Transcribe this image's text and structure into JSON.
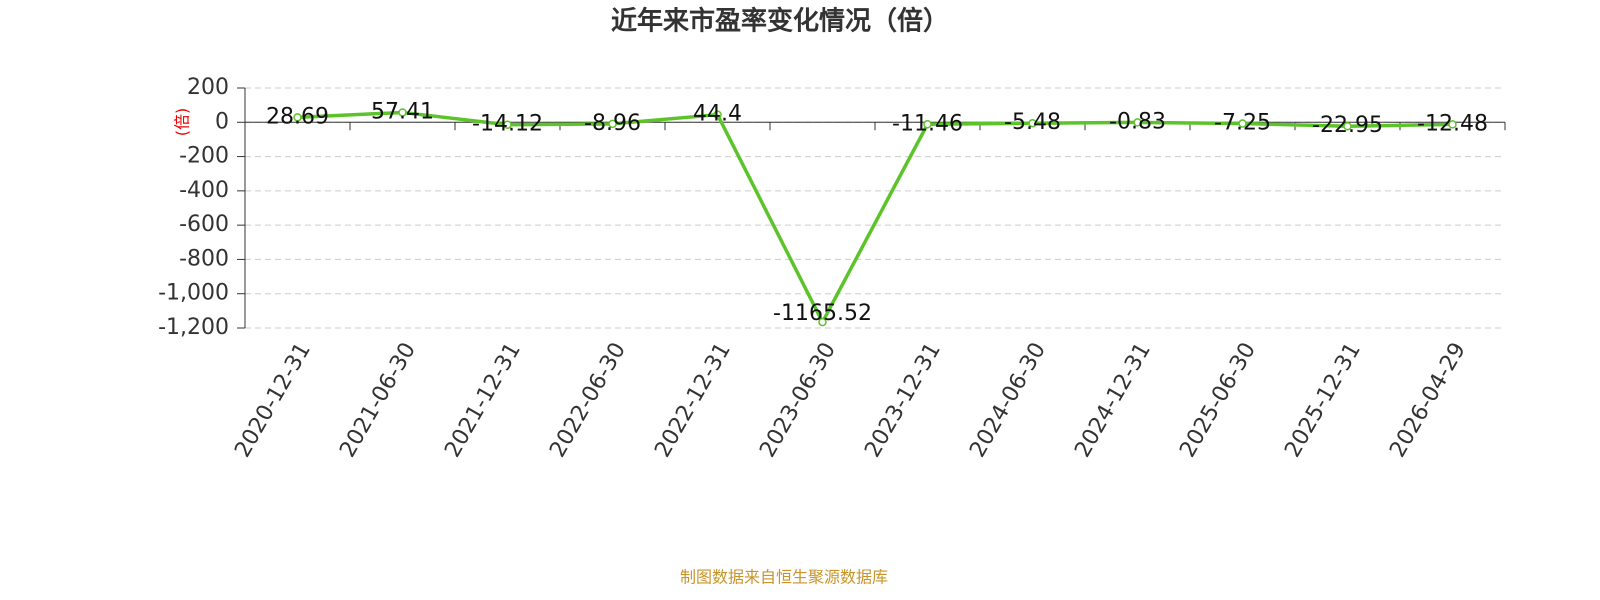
{
  "chart_data": {
    "type": "line",
    "title": "近年来市盈率变化情况（倍）",
    "y_label": "(倍)",
    "source": "制图数据来自恒生聚源数据库",
    "categories": [
      "2020-12-31",
      "2021-06-30",
      "2021-12-31",
      "2022-06-30",
      "2022-12-31",
      "2023-06-30",
      "2023-12-31",
      "2024-06-30",
      "2024-12-31",
      "2025-06-30",
      "2025-12-31",
      "2026-04-29"
    ],
    "series": [
      {
        "name": "市盈率",
        "color": "#5cc42a",
        "values": [
          28.69,
          57.41,
          -14.12,
          -8.96,
          44.4,
          -1165.52,
          -11.46,
          -5.48,
          -0.83,
          -7.25,
          -22.95,
          -12.48
        ]
      }
    ],
    "ylim": [
      -1200,
      200
    ],
    "yticks": [
      200,
      0,
      -200,
      -400,
      -600,
      -800,
      {
        "value": -1000,
        "label": "-1,000"
      },
      {
        "value": -1200,
        "label": "-1,200"
      }
    ],
    "grid": true
  }
}
